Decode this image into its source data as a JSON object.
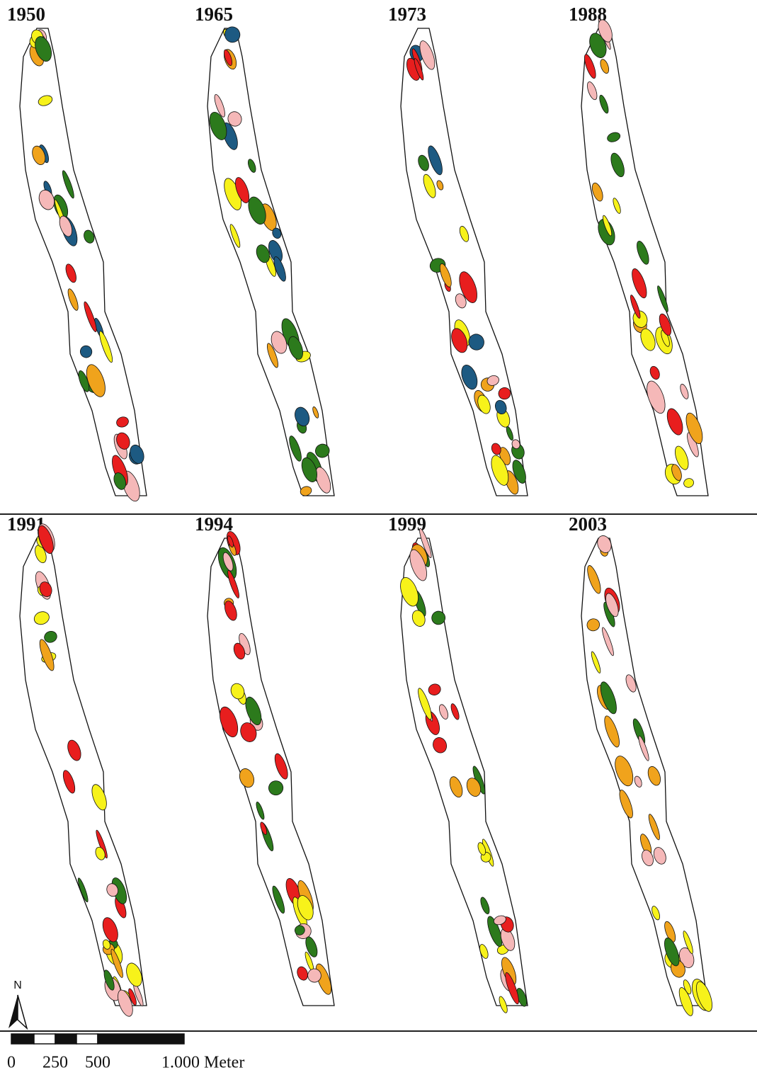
{
  "panels": [
    {
      "year": "1950"
    },
    {
      "year": "1965"
    },
    {
      "year": "1973"
    },
    {
      "year": "1988"
    },
    {
      "year": "1991"
    },
    {
      "year": "1994"
    },
    {
      "year": "1999"
    },
    {
      "year": "2003"
    }
  ],
  "north": "N",
  "scale": {
    "labels": [
      "0",
      "250",
      "500",
      "1.000 Meter"
    ]
  }
}
